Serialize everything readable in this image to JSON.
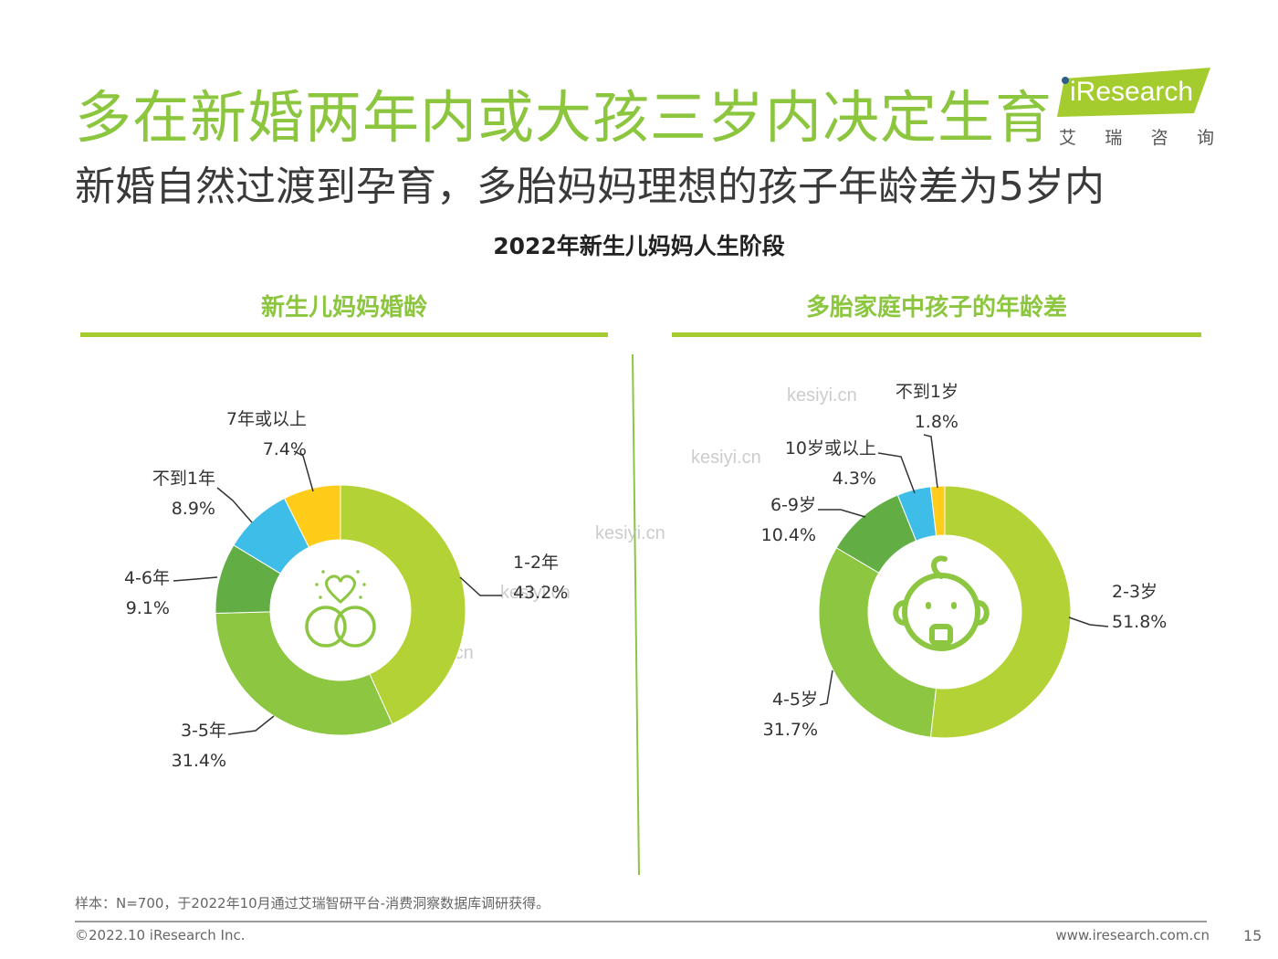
{
  "header": {
    "title": "多在新婚两年内或大孩三岁内决定生育",
    "subtitle": "新婚自然过渡到孕育，多胎妈妈理想的孩子年龄差为5岁内"
  },
  "logo": {
    "brand": "iResearch",
    "sub_chars": [
      "艾",
      "瑞",
      "咨",
      "询"
    ]
  },
  "chart_title": "2022年新生儿妈妈人生阶段",
  "chart_data": [
    {
      "type": "pie",
      "title": "新生儿妈妈婚龄",
      "categories": [
        "1-2年",
        "3-5年",
        "4-6年",
        "不到1年",
        "7年或以上"
      ],
      "values": [
        43.2,
        31.4,
        9.1,
        8.9,
        7.4
      ],
      "value_labels": [
        "43.2%",
        "31.4%",
        "9.1%",
        "8.9%",
        "7.4%"
      ],
      "colors": [
        "#B2D235",
        "#8DC641",
        "#62AE45",
        "#3DBDE8",
        "#FFCC1A"
      ],
      "center_icon": "wedding-rings-icon"
    },
    {
      "type": "pie",
      "title": "多胎家庭中孩子的年龄差",
      "categories": [
        "2-3岁",
        "4-5岁",
        "6-9岁",
        "10岁或以上",
        "不到1岁"
      ],
      "values": [
        51.8,
        31.7,
        10.4,
        4.3,
        1.8
      ],
      "value_labels": [
        "51.8%",
        "31.7%",
        "10.4%",
        "4.3%",
        "1.8%"
      ],
      "colors": [
        "#B2D235",
        "#8DC641",
        "#62AE45",
        "#3DBDE8",
        "#FFCC1A"
      ],
      "center_icon": "baby-face-icon"
    }
  ],
  "watermark_text": "kesiyi.cn",
  "footer": {
    "note": "样本：N=700，于2022年10月通过艾瑞智研平台-消费洞察数据库调研获得。",
    "copyright": "©2022.10 iResearch Inc.",
    "website": "www.iresearch.com.cn",
    "page_number": "15"
  }
}
